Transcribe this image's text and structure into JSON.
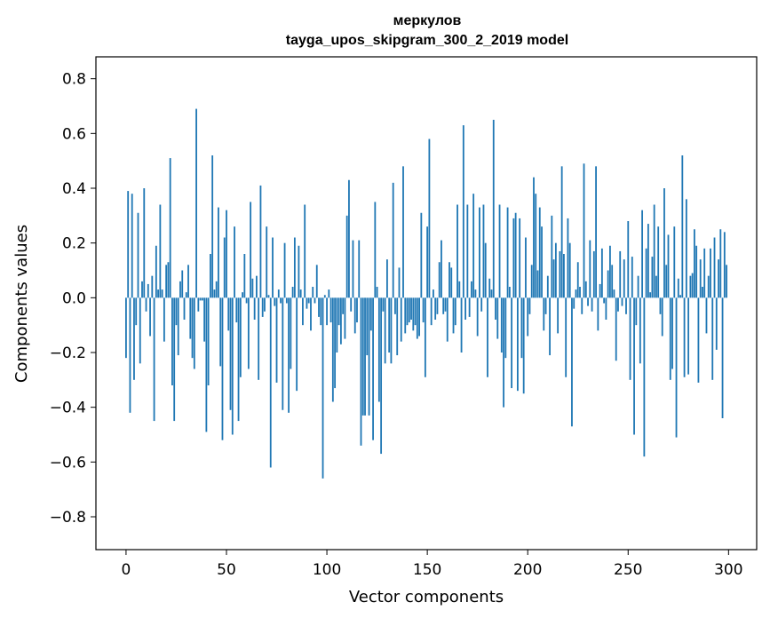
{
  "chart_data": {
    "type": "bar",
    "title_line1": "меркулов",
    "title_line2": "tayga_upos_skipgram_300_2_2019 model",
    "xlabel": "Vector components",
    "ylabel": "Components values",
    "xlim": [
      -15,
      314
    ],
    "ylim": [
      -0.92,
      0.88
    ],
    "x_ticks": [
      {
        "value": 0,
        "label": "0"
      },
      {
        "value": 50,
        "label": "50"
      },
      {
        "value": 100,
        "label": "100"
      },
      {
        "value": 150,
        "label": "150"
      },
      {
        "value": 200,
        "label": "200"
      },
      {
        "value": 250,
        "label": "250"
      },
      {
        "value": 300,
        "label": "300"
      }
    ],
    "y_ticks": [
      {
        "value": 0.8,
        "label": "0.8"
      },
      {
        "value": 0.6,
        "label": "0.6"
      },
      {
        "value": 0.4,
        "label": "0.4"
      },
      {
        "value": 0.2,
        "label": "0.2"
      },
      {
        "value": 0.0,
        "label": "0.0"
      },
      {
        "value": -0.2,
        "label": "−0.2"
      },
      {
        "value": -0.4,
        "label": "−0.4"
      },
      {
        "value": -0.6,
        "label": "−0.6"
      },
      {
        "value": -0.8,
        "label": "−0.8"
      }
    ],
    "grid": false,
    "bar_color": "#1f77b4",
    "values": [
      -0.22,
      0.39,
      -0.42,
      0.38,
      -0.3,
      -0.1,
      0.31,
      -0.24,
      0.06,
      0.4,
      -0.05,
      0.05,
      -0.14,
      0.08,
      -0.45,
      0.19,
      0.03,
      0.34,
      0.03,
      -0.16,
      0.12,
      0.13,
      0.51,
      -0.32,
      -0.45,
      -0.1,
      -0.21,
      0.06,
      0.1,
      -0.08,
      0.02,
      0.12,
      -0.15,
      -0.22,
      -0.26,
      0.69,
      -0.05,
      -0.01,
      -0.01,
      -0.16,
      -0.49,
      -0.32,
      0.16,
      0.52,
      0.03,
      0.06,
      0.33,
      -0.25,
      -0.52,
      0.22,
      0.32,
      -0.12,
      -0.41,
      -0.5,
      0.26,
      -0.09,
      -0.45,
      -0.29,
      0.02,
      0.16,
      -0.02,
      -0.26,
      0.35,
      0.07,
      -0.08,
      0.08,
      -0.3,
      0.41,
      -0.07,
      -0.05,
      0.26,
      0.01,
      -0.62,
      0.22,
      -0.03,
      -0.31,
      0.03,
      -0.02,
      -0.41,
      0.2,
      -0.02,
      -0.42,
      -0.26,
      0.04,
      0.22,
      -0.34,
      0.19,
      0.03,
      -0.1,
      0.34,
      -0.04,
      -0.02,
      -0.12,
      0.04,
      -0.02,
      0.12,
      -0.07,
      -0.1,
      -0.66,
      0.01,
      -0.1,
      0.03,
      -0.09,
      -0.38,
      -0.33,
      -0.2,
      -0.1,
      -0.17,
      -0.06,
      -0.15,
      0.3,
      0.43,
      -0.05,
      0.21,
      -0.13,
      -0.09,
      0.21,
      -0.54,
      -0.43,
      -0.43,
      -0.21,
      -0.43,
      -0.12,
      -0.52,
      0.35,
      0.04,
      -0.38,
      -0.57,
      -0.05,
      -0.24,
      0.14,
      -0.2,
      -0.24,
      0.42,
      -0.06,
      -0.21,
      0.11,
      -0.16,
      0.48,
      -0.13,
      -0.1,
      -0.09,
      -0.08,
      -0.12,
      -0.1,
      -0.15,
      -0.14,
      0.31,
      -0.09,
      -0.29,
      0.26,
      0.58,
      -0.1,
      0.03,
      -0.08,
      -0.06,
      0.13,
      0.21,
      -0.06,
      -0.05,
      -0.16,
      0.13,
      0.11,
      -0.13,
      -0.1,
      0.34,
      0.06,
      -0.2,
      0.63,
      -0.08,
      0.34,
      -0.07,
      0.06,
      0.38,
      0.03,
      -0.14,
      0.33,
      -0.05,
      0.34,
      0.2,
      -0.29,
      0.07,
      0.03,
      0.65,
      -0.08,
      -0.15,
      0.34,
      -0.2,
      -0.4,
      -0.22,
      0.33,
      0.04,
      -0.33,
      0.29,
      0.31,
      -0.34,
      0.29,
      -0.22,
      -0.35,
      0.22,
      -0.14,
      -0.06,
      0.12,
      0.44,
      0.38,
      0.1,
      0.33,
      0.26,
      -0.12,
      -0.06,
      0.08,
      -0.21,
      0.3,
      0.14,
      0.2,
      -0.13,
      0.17,
      0.48,
      0.16,
      -0.29,
      0.29,
      0.2,
      -0.47,
      -0.04,
      0.03,
      0.13,
      0.04,
      -0.06,
      0.49,
      0.06,
      -0.03,
      0.21,
      -0.05,
      0.17,
      0.48,
      -0.12,
      0.05,
      0.18,
      -0.02,
      -0.08,
      0.1,
      0.19,
      0.12,
      0.03,
      -0.23,
      -0.05,
      0.17,
      -0.03,
      0.14,
      -0.06,
      0.28,
      -0.3,
      0.15,
      -0.5,
      -0.1,
      0.08,
      -0.24,
      0.32,
      -0.58,
      0.18,
      0.27,
      0.02,
      0.15,
      0.34,
      0.08,
      0.26,
      -0.06,
      -0.14,
      0.4,
      0.12,
      0.23,
      -0.3,
      -0.26,
      0.26,
      -0.51,
      0.07,
      0.01,
      0.52,
      -0.29,
      0.36,
      -0.28,
      0.08,
      0.09,
      0.25,
      0.19,
      -0.31,
      0.14,
      0.04,
      0.18,
      -0.13,
      0.08,
      0.18,
      -0.3,
      0.22,
      -0.19,
      0.14,
      0.25,
      -0.44,
      0.24,
      0.12
    ]
  }
}
